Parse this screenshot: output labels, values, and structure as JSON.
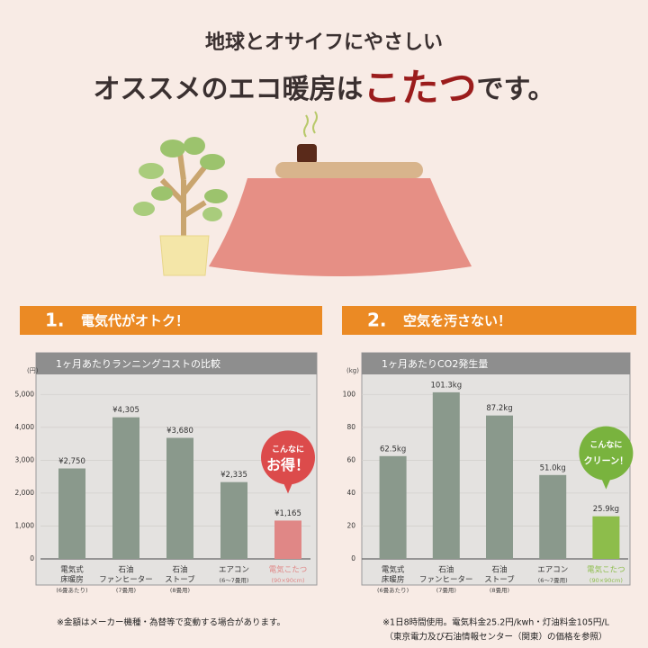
{
  "header": {
    "line1": "地球とオサイフにやさしい",
    "line2_before": "オススメのエコ暖房は",
    "line2_highlight": "こたつ",
    "line2_after": "です。"
  },
  "chart_data": [
    {
      "type": "bar",
      "section_number": "1.",
      "section_title": "電気代がオトク！",
      "title": "1ヶ月あたりランニングコストの比較",
      "y_unit": "(円)",
      "categories": [
        [
          "電気式",
          "床暖房"
        ],
        [
          "石油",
          "ファンヒーター"
        ],
        [
          "石油",
          "ストーブ"
        ],
        [
          "エアコン"
        ],
        [
          "電気こたつ"
        ]
      ],
      "category_notes": [
        "(6畳あたり)",
        "(7畳用)",
        "(8畳用)",
        "(6～7畳用)",
        "(90×90cm)"
      ],
      "values": [
        2750,
        4305,
        3680,
        2335,
        1165
      ],
      "value_labels": [
        "¥2,750",
        "¥4,305",
        "¥3,680",
        "¥2,335",
        "¥1,165"
      ],
      "colors": [
        "#8a998c",
        "#8a998c",
        "#8a998c",
        "#8a998c",
        "#e08786"
      ],
      "ylim": [
        0,
        5500
      ],
      "yticks": [
        0,
        {
          "value": 1000,
          "label": "1,000"
        },
        {
          "value": 2000,
          "label": "2,000"
        },
        {
          "value": 3000,
          "label": "3,000"
        },
        {
          "value": 4000,
          "label": "4,000"
        },
        {
          "value": 5000,
          "label": "5,000"
        }
      ],
      "grid": true,
      "callout": [
        "こんなに",
        "お得！"
      ],
      "callout_color": "#dc4b4b",
      "note": [
        "※金額はメーカー機種・為替等で変動する場合があります。"
      ]
    },
    {
      "type": "bar",
      "section_number": "2.",
      "section_title": "空気を汚さない！",
      "title": "1ヶ月あたりCO2発生量",
      "y_unit": "(kg)",
      "categories": [
        [
          "電気式",
          "床暖房"
        ],
        [
          "石油",
          "ファンヒーター"
        ],
        [
          "石油",
          "ストーブ"
        ],
        [
          "エアコン"
        ],
        [
          "電気こたつ"
        ]
      ],
      "category_notes": [
        "(6畳あたり)",
        "(7畳用)",
        "(8畳用)",
        "(6～7畳用)",
        "(90×90cm)"
      ],
      "values": [
        62.5,
        101.3,
        87.2,
        51.0,
        25.9
      ],
      "value_labels": [
        "62.5kg",
        "101.3kg",
        "87.2kg",
        "51.0kg",
        "25.9kg"
      ],
      "colors": [
        "#8a998c",
        "#8a998c",
        "#8a998c",
        "#8a998c",
        "#8dbd4b"
      ],
      "ylim": [
        0,
        110
      ],
      "yticks": [
        0,
        20,
        40,
        60,
        80,
        100
      ],
      "grid": true,
      "callout": [
        "こんなに",
        "クリーン！"
      ],
      "callout_color": "#79b33e",
      "note": [
        "※1日8時間使用。電気料金25.2円/kwh・灯油料金105円/L",
        "（東京電力及び石油情報センター（関東）の価格を参照）"
      ]
    }
  ]
}
